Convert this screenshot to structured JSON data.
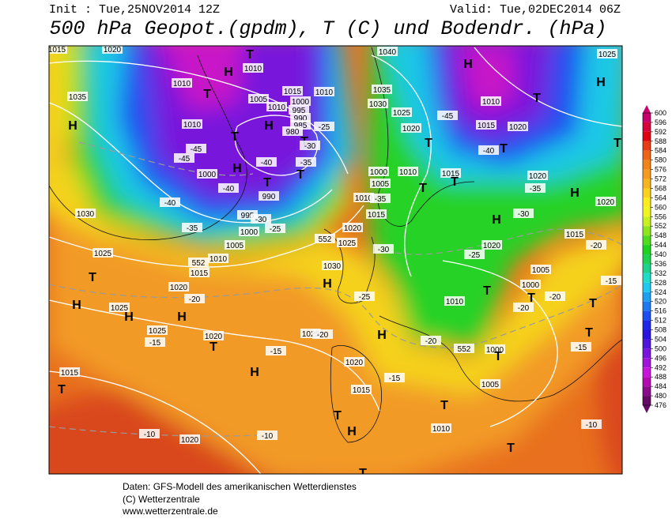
{
  "header": {
    "init": "Init : Tue,25NOV2014 12Z",
    "valid": "Valid: Tue,02DEC2014 06Z",
    "title": "500 hPa Geopot.(gpdm), T (C) und Bodendr. (hPa)"
  },
  "legend": {
    "ticks": [
      600,
      596,
      592,
      588,
      584,
      580,
      576,
      572,
      568,
      564,
      560,
      556,
      552,
      548,
      544,
      540,
      536,
      532,
      528,
      524,
      520,
      516,
      512,
      508,
      504,
      500,
      496,
      492,
      488,
      484,
      480,
      476
    ],
    "colors": [
      "#c8006e",
      "#d7003c",
      "#e10010",
      "#e83c14",
      "#ee6414",
      "#f2821a",
      "#f59a1e",
      "#f8b41e",
      "#fad21e",
      "#fceb1e",
      "#f0f51e",
      "#c8f01e",
      "#8ce61e",
      "#50dc1e",
      "#1ed21e",
      "#1ed250",
      "#1ed28c",
      "#1edcc8",
      "#1ec8f0",
      "#1ea0f0",
      "#1e78f0",
      "#1e50f0",
      "#1e28e6",
      "#2814dc",
      "#5014dc",
      "#7814dc",
      "#a014dc",
      "#c814dc",
      "#b40ab4",
      "#8c0a8c",
      "#640a64"
    ]
  },
  "map": {
    "labels": [
      "1015",
      "1020",
      "1010",
      "1035",
      "H",
      "T",
      "1010",
      "H",
      "1010",
      "T",
      "1005",
      "1010",
      "1015",
      "1010",
      "1000",
      "995",
      "990",
      "985",
      "980",
      "H",
      "T",
      "T",
      "-25",
      "-30",
      "-35",
      "-40",
      "-45",
      "-45",
      "-40",
      "-40",
      "H",
      "T",
      "T",
      "1000",
      "990",
      "995",
      "1000",
      "-30",
      "-25",
      "1030",
      "-35",
      "1005",
      "1025",
      "552",
      "1015",
      "1010",
      "T",
      "H",
      "1020",
      "-20",
      "1025",
      "H",
      "H",
      "1025",
      "-15",
      "1020",
      "T",
      "-15",
      "H",
      "1015",
      "T",
      "-10",
      "1020",
      "-10",
      "1040",
      "1035",
      "1030",
      "1025",
      "1020",
      "-45",
      "T",
      "H",
      "1010",
      "T",
      "1015",
      "1020",
      "-40",
      "T",
      "1025",
      "H",
      "T",
      "1000",
      "1005",
      "1010",
      "1015",
      "T",
      "T",
      "1010",
      "-35",
      "1015",
      "1020",
      "-35",
      "H",
      "1020",
      "H",
      "-30",
      "552",
      "1025",
      "1020",
      "-30",
      "1020",
      "-25",
      "1015",
      "-20",
      "1030",
      "H",
      "1005",
      "-15",
      "-25",
      "T",
      "1000",
      "T",
      "1010",
      "-20",
      "-20",
      "T",
      "1025",
      "-20",
      "H",
      "-20",
      "552",
      "1000",
      "T",
      "-15",
      "T",
      "1020",
      "-15",
      "1015",
      "1005",
      "T",
      "T",
      "1010",
      "-10",
      "T",
      "T",
      "H"
    ]
  },
  "footer": {
    "line1": "Daten: GFS-Modell des amerikanischen Wetterdienstes",
    "line2": "(C) Wetterzentrale",
    "line3": "www.wetterzentrale.de"
  }
}
